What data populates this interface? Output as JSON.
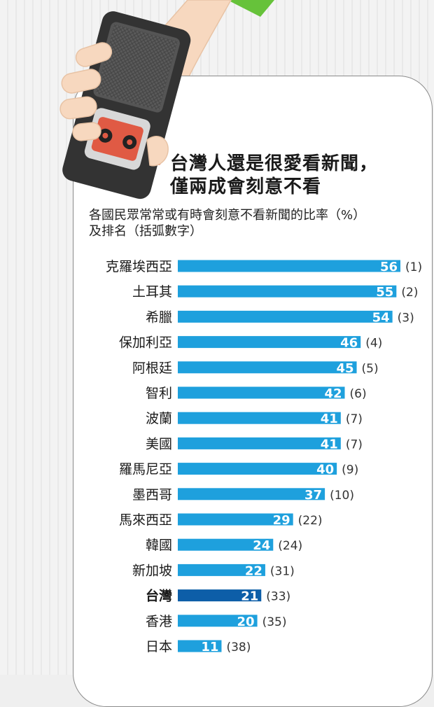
{
  "colors": {
    "bar": "#1ea0dd",
    "highlight": "#0d5ea8",
    "label_text": "#ffffff"
  },
  "title": {
    "line1": "台灣人還是很愛看新聞，",
    "line2": "僅兩成會刻意不看"
  },
  "subtitle": {
    "line1": "各國民眾常常或有時會刻意不看新聞的比率（%）",
    "line2": "及排名（括弧數字）"
  },
  "chart_data": {
    "type": "bar",
    "orientation": "horizontal",
    "highlight_category": "台灣",
    "categories": [
      "克羅埃西亞",
      "土耳其",
      "希臘",
      "保加利亞",
      "阿根廷",
      "智利",
      "波蘭",
      "美國",
      "羅馬尼亞",
      "墨西哥",
      "馬來西亞",
      "韓國",
      "新加坡",
      "台灣",
      "香港",
      "日本"
    ],
    "values": [
      56,
      55,
      54,
      46,
      45,
      42,
      41,
      41,
      40,
      37,
      29,
      24,
      22,
      21,
      20,
      11
    ],
    "ranks": [
      "(1)",
      "(2)",
      "(3)",
      "(4)",
      "(5)",
      "(6)",
      "(7)",
      "(7)",
      "(9)",
      "(10)",
      "(22)",
      "(24)",
      "(31)",
      "(33)",
      "(35)",
      "(38)"
    ],
    "xlim": [
      0,
      56
    ],
    "grid": false,
    "legend": "none"
  }
}
